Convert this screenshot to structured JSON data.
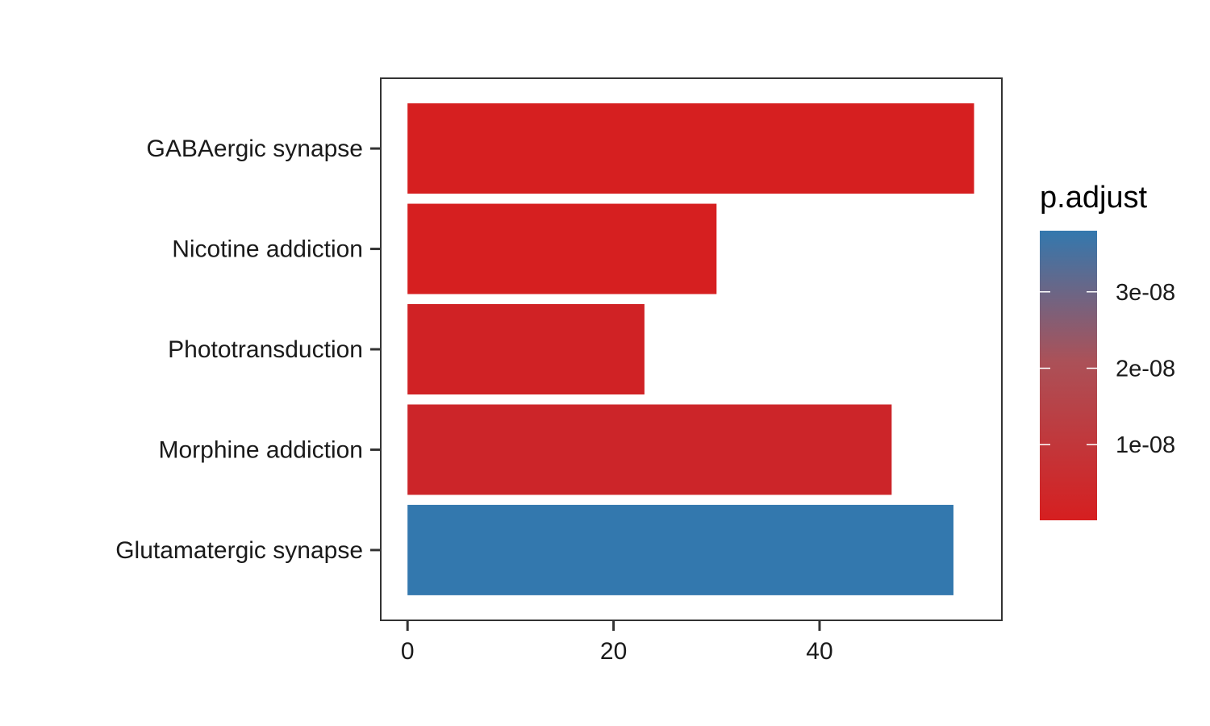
{
  "chart_data": {
    "type": "bar",
    "orientation": "horizontal",
    "categories": [
      "GABAergic synapse",
      "Nicotine addiction",
      "Phototransduction",
      "Morphine addiction",
      "Glutamatergic synapse"
    ],
    "values": [
      55,
      30,
      23,
      47,
      53
    ],
    "p_adjust": [
      1e-10,
      2e-10,
      1.5e-09,
      2.5e-09,
      3.8e-08
    ],
    "xlim": [
      -2.6,
      57.7
    ],
    "x_ticks": [
      "0",
      "20",
      "40"
    ],
    "x_tick_values": [
      0,
      20,
      40
    ],
    "legend": {
      "title": "p.adjust",
      "labels": [
        "3e-08",
        "2e-08",
        "1e-08"
      ],
      "label_values": [
        3e-08,
        2e-08,
        1e-08
      ],
      "range": [
        1e-10,
        3.8e-08
      ],
      "low_color": "#d61f20",
      "high_color": "#3378ae",
      "placement": "right"
    },
    "grid": false
  }
}
